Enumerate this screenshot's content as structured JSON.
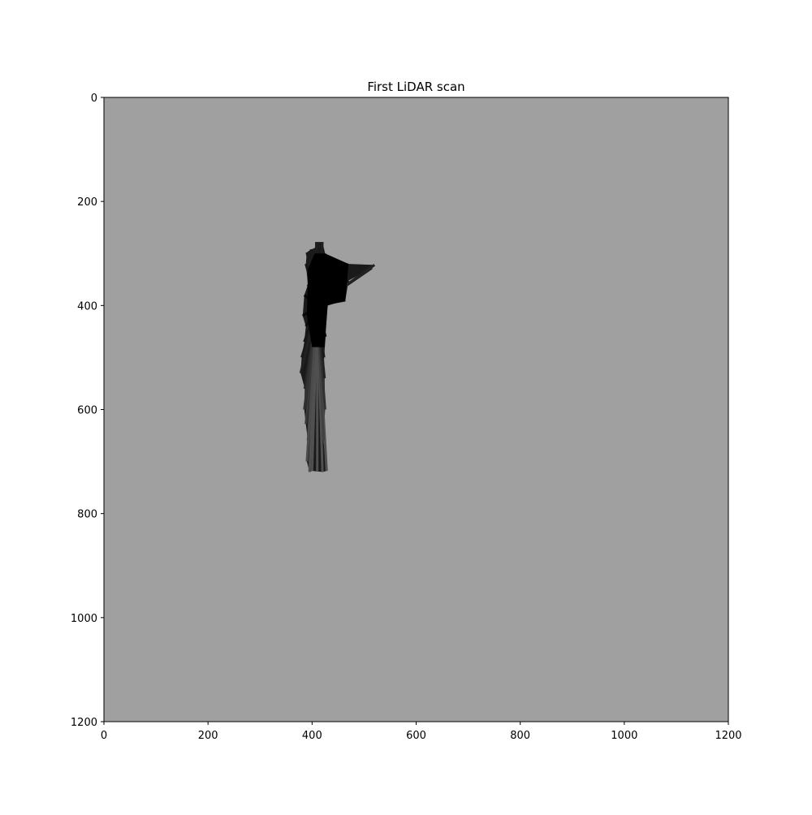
{
  "chart_data": {
    "type": "heatmap",
    "title": "First LiDAR scan",
    "xlabel": "",
    "ylabel": "",
    "xlim": [
      0,
      1200
    ],
    "ylim": [
      1200,
      0
    ],
    "x_ticks": [
      0,
      200,
      400,
      600,
      800,
      1000,
      1200
    ],
    "y_ticks": [
      0,
      200,
      400,
      600,
      800,
      1000,
      1200
    ],
    "x_tick_labels": [
      "0",
      "200",
      "400",
      "600",
      "800",
      "1000",
      "1200"
    ],
    "y_tick_labels": [
      "0",
      "200",
      "400",
      "600",
      "800",
      "1000",
      "1200"
    ],
    "grid": false,
    "background_color": "#a0a0a0",
    "free_space_color": "#000000",
    "scan_origin": [
      410,
      400
    ],
    "scan_endpoints": [
      [
        395,
        720
      ],
      [
        400,
        718
      ],
      [
        410,
        719
      ],
      [
        420,
        720
      ],
      [
        428,
        718
      ],
      [
        422,
        660
      ],
      [
        425,
        600
      ],
      [
        424,
        540
      ],
      [
        423,
        500
      ],
      [
        426,
        460
      ],
      [
        425,
        420
      ],
      [
        430,
        400
      ],
      [
        450,
        380
      ],
      [
        464,
        372
      ],
      [
        464,
        390
      ],
      [
        470,
        352
      ],
      [
        515,
        328
      ],
      [
        520,
        322
      ],
      [
        470,
        320
      ],
      [
        440,
        322
      ],
      [
        425,
        300
      ],
      [
        420,
        278
      ],
      [
        408,
        278
      ],
      [
        405,
        290
      ],
      [
        398,
        292
      ],
      [
        390,
        298
      ],
      [
        388,
        320
      ],
      [
        392,
        360
      ],
      [
        385,
        380
      ],
      [
        382,
        420
      ],
      [
        388,
        440
      ],
      [
        385,
        470
      ],
      [
        380,
        500
      ],
      [
        378,
        530
      ],
      [
        386,
        560
      ],
      [
        385,
        600
      ],
      [
        388,
        628
      ],
      [
        392,
        660
      ],
      [
        390,
        700
      ]
    ]
  }
}
